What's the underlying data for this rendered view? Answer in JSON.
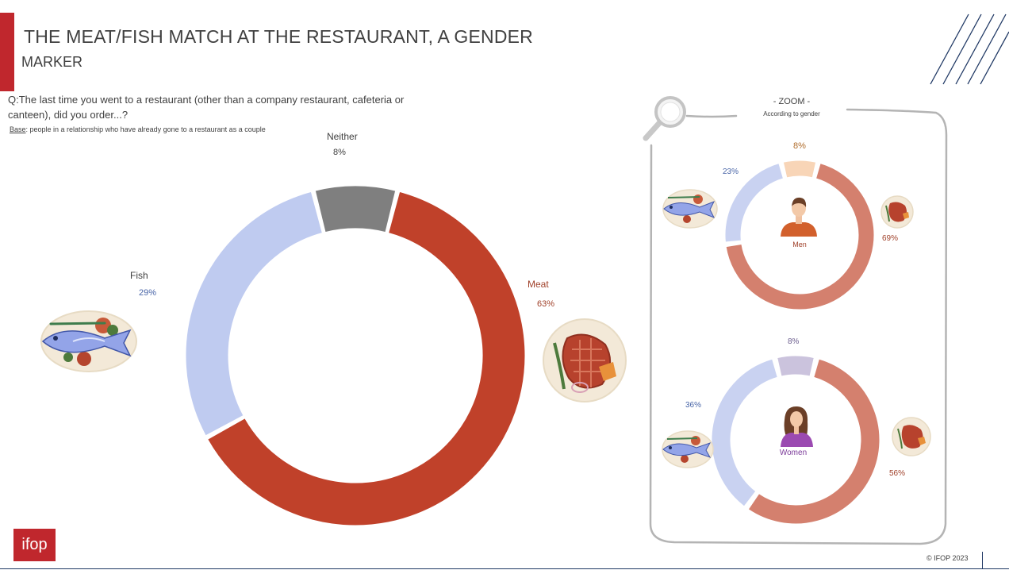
{
  "header": {
    "title": "THE MEAT/FISH MATCH AT THE RESTAURANT, A GENDER",
    "subtitle": "MARKER",
    "question": "Q:The last time you went to a restaurant (other than a company restaurant, cafeteria or canteen), did you order...?",
    "base_label": "Base",
    "base_text": ": people in a relationship who have already gone to a restaurant as a couple"
  },
  "zoom": {
    "title": "- ZOOM -",
    "subtitle": "According to gender"
  },
  "footer": {
    "logo": "ifop",
    "copyright": "© IFOP 2023"
  },
  "colors": {
    "meat": "#c0412a",
    "fish": "#bfcbf0",
    "neither": "#7f7f7f",
    "men_meat": "#d4806e",
    "men_fish": "#c9d2f1",
    "men_neither": "#f8d5b7",
    "women_meat": "#d4806e",
    "women_fish": "#c9d2f1",
    "women_neither": "#cbc3dd",
    "meat_text": "#a0412a",
    "fish_text": "#4a66a8",
    "men_neither_text": "#b06c2a",
    "brand": "#c0272d",
    "accent_lines": "#1f3864"
  },
  "icons": [
    "fish-plate-icon",
    "steak-plate-icon",
    "magnifier-icon",
    "man-icon",
    "woman-icon"
  ],
  "chart_data": [
    {
      "type": "pie",
      "name": "overall",
      "categories": [
        "Meat",
        "Fish",
        "Neither"
      ],
      "values": [
        63,
        29,
        8
      ],
      "labels": [
        "63%",
        "29%",
        "8%"
      ]
    },
    {
      "type": "pie",
      "name": "men",
      "title": "Men",
      "categories": [
        "Meat",
        "Fish",
        "Neither"
      ],
      "values": [
        69,
        23,
        8
      ],
      "labels": [
        "69%",
        "23%",
        "8%"
      ]
    },
    {
      "type": "pie",
      "name": "women",
      "title": "Women",
      "categories": [
        "Meat",
        "Fish",
        "Neither"
      ],
      "values": [
        56,
        36,
        8
      ],
      "labels": [
        "56%",
        "36%",
        "8%"
      ]
    }
  ]
}
